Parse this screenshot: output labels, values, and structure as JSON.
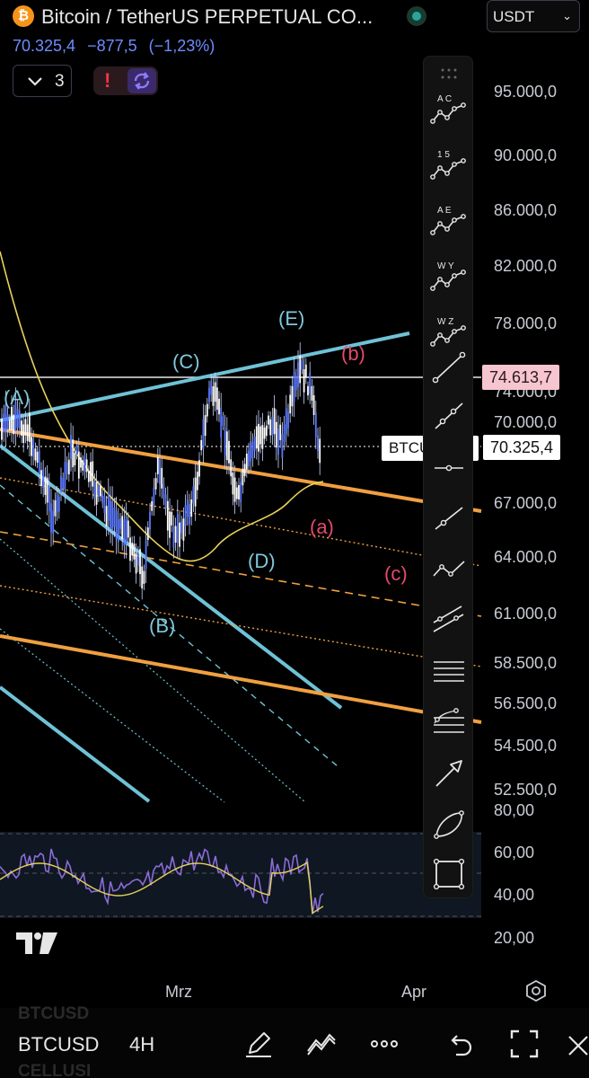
{
  "header": {
    "symbol_title": "Bitcoin / TetherUS PERPETUAL CO...",
    "logo_glyph": "₿",
    "last_price": "70.325,4",
    "change_abs": "−877,5",
    "change_pct": "(−1,23%)",
    "currency": "USDT",
    "indicators_count": "3"
  },
  "colors": {
    "accent_blue": "#6d8cff",
    "wave_blue": "#7ec8dc",
    "wave_red": "#e24a6b",
    "orange": "#f0a040",
    "ma_yellow": "#e6d25a",
    "rsi_purple": "#8a6bd8"
  },
  "price_axis": [
    "95.000,0",
    "90.000,0",
    "86.000,0",
    "82.000,0",
    "78.000,0",
    "74.000,0",
    "70.000,0",
    "67.000,0",
    "64.000,0",
    "61.000,0",
    "58.500,0",
    "56.500,0",
    "54.500,0",
    "52.500,0"
  ],
  "price_tags": {
    "high": "74.613,7",
    "current": "70.325,4",
    "symbol": "BTCUSD.P"
  },
  "rsi_axis": [
    "80,00",
    "60,00",
    "40,00",
    "20,00"
  ],
  "wave_labels_blue": [
    "(A)",
    "(B)",
    "(C)",
    "(D)",
    "(E)"
  ],
  "wave_labels_red": [
    "(a)",
    "(b)",
    "(c)"
  ],
  "time_axis": [
    "Mrz",
    "Apr"
  ],
  "toolbar": {
    "items": [
      {
        "name": "abc-pattern-tool",
        "top_label": "A    C"
      },
      {
        "name": "impulse-wave-tool",
        "top_label": "1    5"
      },
      {
        "name": "triangle-wave-tool",
        "top_label": "A    E"
      },
      {
        "name": "double-combo-tool",
        "top_label": "W    Y"
      },
      {
        "name": "triple-combo-tool",
        "top_label": "W    Z"
      }
    ]
  },
  "bottombar": {
    "symbol": "BTCUSD",
    "interval": "4H",
    "ghost_top": "BTCUSD",
    "ghost_bottom": "CELLUSI"
  }
}
